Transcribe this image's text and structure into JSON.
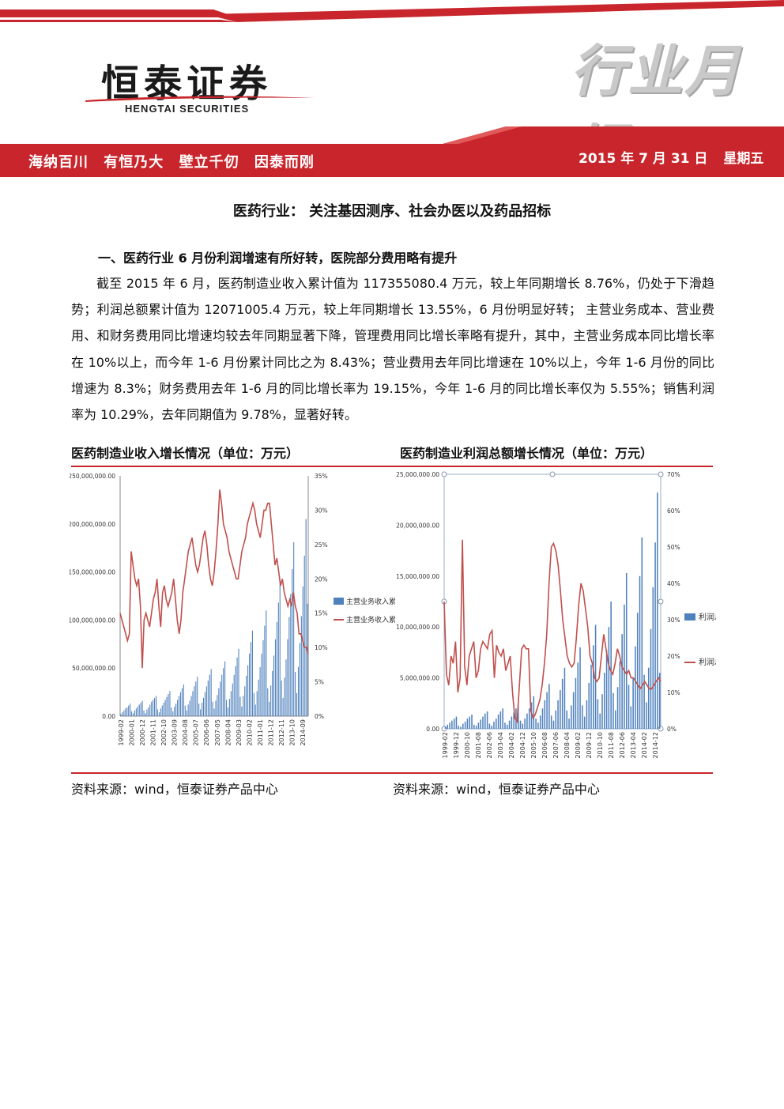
{
  "header": {
    "company_cn": "恒泰证券",
    "company_en": "HENGTAI SECURITIES",
    "report_type": "行业月报",
    "slogan": [
      "海纳百川",
      "有恒乃大",
      "壁立千仞",
      "因泰而刚"
    ],
    "date": "2015 年 7 月 31 日",
    "weekday": "星期五",
    "colors": {
      "brand_red": "#c8262c",
      "highlight": "#f6c56a"
    }
  },
  "document": {
    "title": "医药行业：  关注基因测序、社会办医以及药品招标",
    "section_heading": "一、医药行业 6 月份利润增速有所好转，医院部分费用略有提升",
    "paragraph": "截至 2015 年 6 月，医药制造业收入累计值为 117355080.4 万元，较上年同期增长 8.76%，仍处于下滑趋势；利润总额累计值为 12071005.4 万元，较上年同期增长 13.55%，6 月份明显好转； 主营业务成本、营业费用、和财务费用同比增速均较去年同期显著下降，管理费用同比增长率略有提升，其中，主营业务成本同比增长率在 10%以上，而今年 1-6 月份累计同比之为 8.43%；营业费用去年同比增速在 10%以上，今年 1-6 月份的同比增速为 8.3%；财务费用去年 1-6 月的同比增长率为 19.15%，今年 1-6 月的同比增长率仅为 5.55%；销售利润率为 10.29%，去年同期值为 9.78%，显著好转。"
  },
  "charts": {
    "chart1_title": "医药制造业收入增长情况（单位：万元）",
    "chart2_title": "医药制造业利润总额增长情况（单位：万元）",
    "source1": "资料来源：wind，恒泰证券产品中心",
    "source2": "资料来源：wind，恒泰证券产品中心"
  },
  "chart_data": [
    {
      "type": "bar",
      "title": "医药制造业收入增长情况（单位：万元）",
      "y_left": {
        "ticks": [
          "250,000,000.00",
          "200,000,000.00",
          "150,000,000.00",
          "100,000,000.00",
          "50,000,000.00",
          "0.00"
        ],
        "ylim": [
          0,
          250000000
        ]
      },
      "y_right": {
        "ticks": [
          "35%",
          "30%",
          "25%",
          "20%",
          "15%",
          "10%",
          "5%",
          "0%"
        ],
        "ylim": [
          0,
          35
        ]
      },
      "x_ticks": [
        "1999-02",
        "2000-01",
        "2000-12",
        "2001-11",
        "2002-10",
        "2003-09",
        "2004-08",
        "2005-07",
        "2006-06",
        "2007-05",
        "2008-04",
        "2009-03",
        "2010-02",
        "2011-01",
        "2011-12",
        "2012-11",
        "2013-10",
        "2014-09"
      ],
      "legend": [
        "主营业务收入累",
        "主营业务收入累"
      ],
      "legend_position": "right",
      "colors": {
        "bar": "#4f81bd",
        "line": "#c0504d"
      },
      "series": [
        {
          "kind": "bar",
          "values": [
            2,
            4,
            6,
            8,
            9,
            11,
            13,
            5,
            3,
            6,
            8,
            10,
            12,
            14,
            16,
            6,
            3,
            7,
            9,
            12,
            15,
            17,
            19,
            21,
            7,
            4,
            8,
            11,
            14,
            17,
            20,
            23,
            26,
            9,
            5,
            10,
            13,
            17,
            21,
            25,
            29,
            33,
            11,
            6,
            12,
            16,
            21,
            26,
            31,
            36,
            41,
            13,
            7,
            14,
            19,
            25,
            31,
            37,
            43,
            49,
            15,
            8,
            16,
            22,
            29,
            36,
            43,
            50,
            57,
            17,
            9,
            18,
            26,
            34,
            43,
            52,
            61,
            70,
            20,
            10,
            21,
            31,
            42,
            53,
            65,
            77,
            89,
            24,
            12,
            26,
            38,
            51,
            65,
            79,
            94,
            110,
            29,
            15,
            32,
            47,
            63,
            80,
            98,
            118,
            140,
            37,
            19,
            40,
            59,
            80,
            103,
            127,
            153,
            181,
            46,
            24,
            51,
            76,
            104,
            135,
            167,
            205,
            117
          ]
        },
        {
          "kind": "line",
          "values": [
            15,
            14,
            13,
            12,
            11,
            12,
            24,
            22,
            20,
            19,
            20,
            16,
            7,
            14,
            15,
            14,
            13,
            15,
            17,
            18,
            20,
            16,
            13,
            18,
            19,
            17,
            16,
            17,
            18,
            20,
            17,
            14,
            12,
            14,
            18,
            20,
            22,
            24,
            25,
            26,
            24,
            22,
            21,
            22,
            24,
            26,
            27,
            25,
            22,
            20,
            19,
            21,
            24,
            28,
            33,
            31,
            28,
            27,
            26,
            24,
            23,
            22,
            21,
            20,
            20,
            22,
            24,
            25,
            26,
            28,
            29,
            30,
            31,
            30,
            28,
            27,
            26,
            28,
            30,
            30,
            31,
            31,
            28,
            25,
            22,
            23,
            21,
            19,
            20,
            18,
            17,
            16,
            17,
            16,
            18,
            16,
            15,
            12,
            12,
            11,
            10,
            10,
            9
          ]
        }
      ]
    },
    {
      "type": "bar",
      "title": "医药制造业利润总额增长情况（单位：万元）",
      "y_left": {
        "ticks": [
          "25,000,000.00",
          "20,000,000.00",
          "15,000,000.00",
          "10,000,000.00",
          "5,000,000.00",
          "0.00"
        ],
        "ylim": [
          0,
          25000000
        ]
      },
      "y_right": {
        "ticks": [
          "70%",
          "60%",
          "50%",
          "40%",
          "30%",
          "20%",
          "10%",
          "0%"
        ],
        "ylim": [
          0,
          70
        ]
      },
      "x_ticks": [
        "1999-02",
        "1999-12",
        "2000-10",
        "2001-08",
        "2002-06",
        "2003-04",
        "2004-02",
        "2004-12",
        "2005-10",
        "2006-08",
        "2007-06",
        "2008-04",
        "2009-02",
        "2009-12",
        "2010-10",
        "2011-08",
        "2012-06",
        "2013-04",
        "2014-02",
        "2014-12"
      ],
      "legend": [
        "利润总额累计",
        "利润总额累计"
      ],
      "legend_position": "right",
      "colors": {
        "bar": "#4f81bd",
        "line": "#c0504d"
      },
      "series": [
        {
          "kind": "bar",
          "values": [
            0.2,
            0.4,
            0.6,
            0.8,
            1.0,
            1.2,
            0.3,
            0.2,
            0.5,
            0.7,
            1.0,
            1.2,
            1.4,
            0.4,
            0.3,
            0.6,
            0.9,
            1.2,
            1.5,
            1.7,
            0.5,
            0.3,
            0.7,
            1.0,
            1.4,
            1.7,
            2.0,
            0.6,
            0.4,
            0.8,
            1.2,
            1.6,
            2.0,
            2.4,
            0.8,
            0.5,
            1.0,
            1.5,
            2.0,
            2.6,
            3.2,
            1.0,
            0.6,
            1.3,
            2.0,
            2.8,
            3.6,
            4.4,
            1.3,
            0.8,
            1.8,
            2.8,
            3.8,
            4.9,
            6.0,
            1.8,
            1.0,
            2.3,
            3.6,
            5.0,
            6.5,
            8.0,
            2.3,
            1.2,
            2.8,
            4.5,
            6.3,
            8.2,
            10.2,
            2.9,
            1.5,
            3.4,
            5.5,
            7.7,
            10.0,
            12.5,
            3.5,
            1.8,
            4.1,
            6.6,
            9.3,
            12.2,
            15.3,
            4.3,
            2.2,
            5.0,
            8.1,
            11.4,
            15.0,
            18.8,
            5.3,
            2.6,
            6.0,
            9.8,
            13.9,
            18.3,
            23.2,
            5.5
          ]
        },
        {
          "kind": "line",
          "values": [
            35,
            15,
            12,
            20,
            18,
            24,
            10,
            14,
            52,
            17,
            12,
            20,
            22,
            24,
            14,
            16,
            22,
            24,
            23,
            22,
            26,
            27,
            14,
            23,
            21,
            20,
            22,
            16,
            18,
            20,
            10,
            3,
            2,
            12,
            22,
            23,
            22,
            22,
            5,
            3,
            4,
            6,
            8,
            12,
            18,
            26,
            40,
            50,
            51,
            49,
            45,
            38,
            30,
            25,
            20,
            18,
            17,
            18,
            25,
            34,
            40,
            38,
            33,
            28,
            20,
            18,
            14,
            13,
            14,
            20,
            26,
            22,
            18,
            16,
            15,
            18,
            22,
            20,
            17,
            16,
            15,
            16,
            14,
            14,
            13,
            12,
            11,
            12,
            13,
            12,
            11,
            11,
            12,
            13,
            14,
            13
          ]
        }
      ]
    }
  ]
}
